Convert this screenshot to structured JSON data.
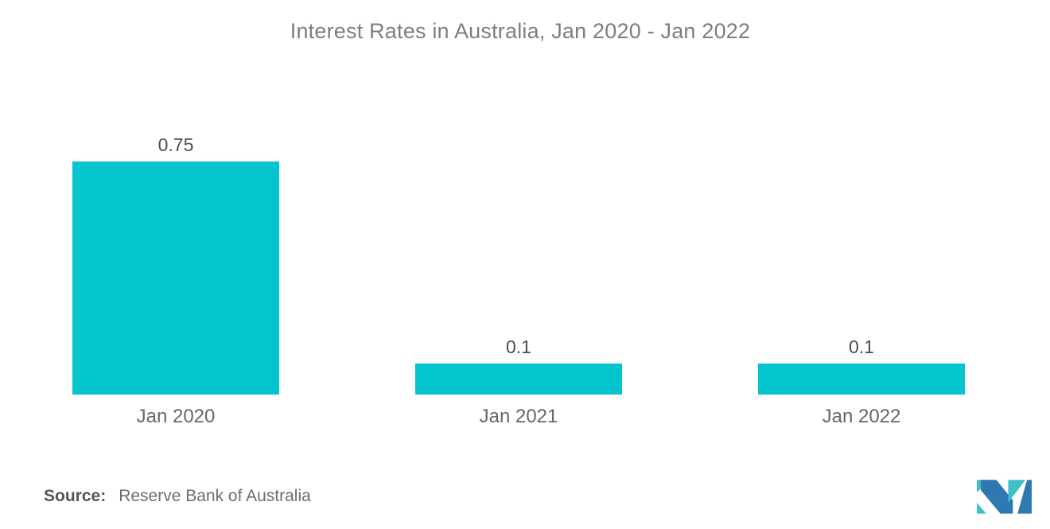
{
  "title": "Interest Rates in Australia, Jan 2020 - Jan 2022",
  "source": {
    "label": "Source:",
    "value": "Reserve Bank of Australia"
  },
  "logo": {
    "name": "mordor-intelligence-logo",
    "blue": "#2e79b2",
    "teal": "#41bfc7"
  },
  "colors": {
    "bar": "#04c5cd",
    "title_text": "#7e7e7e",
    "value_label_text": "#4d4d4d",
    "category_label_text": "#666666",
    "source_text": "#6e6e6e"
  },
  "chart_data": {
    "type": "bar",
    "title": "Interest Rates in Australia, Jan 2020 - Jan 2022",
    "categories": [
      "Jan 2020",
      "Jan 2021",
      "Jan 2022"
    ],
    "values": [
      0.75,
      0.1,
      0.1
    ],
    "data_labels": [
      "0.75",
      "0.1",
      "0.1"
    ],
    "xlabel": "",
    "ylabel": "",
    "ylim": [
      0,
      0.75
    ],
    "bar_color": "#04c5cd",
    "grid": false,
    "legend": false,
    "axes_visible": false,
    "source": "Reserve Bank of Australia"
  }
}
